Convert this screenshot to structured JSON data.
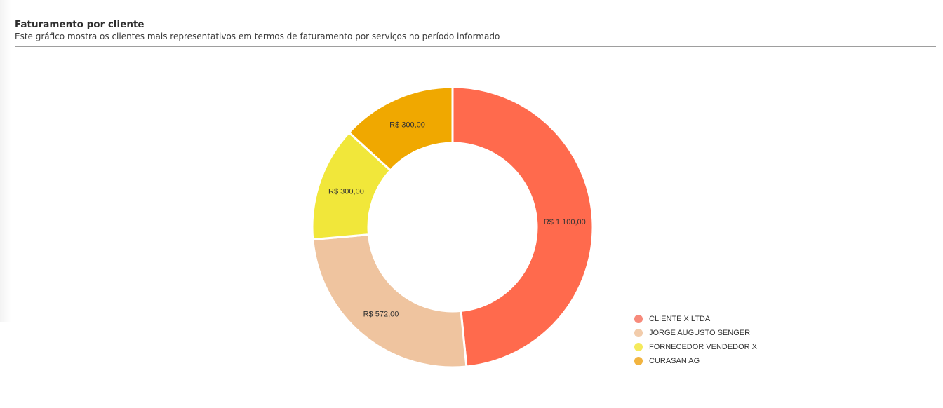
{
  "header": {
    "title": "Faturamento por cliente",
    "subtitle": "Este gráfico mostra os clientes mais representativos em termos de faturamento por serviços no período informado"
  },
  "chart_data": {
    "type": "pie",
    "variant": "donut",
    "title": "",
    "legend_position": "bottom-right",
    "slices": [
      {
        "name": "CLIENTE X LTDA",
        "value": 1100.0,
        "label": "R$ 1.100,00",
        "color": "#ff6a4d",
        "legend_color": "#f78a7b"
      },
      {
        "name": "JORGE AUGUSTO SENGER",
        "value": 572.0,
        "label": "R$ 572,00",
        "color": "#efc49f",
        "legend_color": "#f2ccab"
      },
      {
        "name": "FORNECEDOR VENDEDOR X",
        "value": 300.0,
        "label": "R$ 300,00",
        "color": "#f1e73a",
        "legend_color": "#f5ea5c"
      },
      {
        "name": "CURASAN AG",
        "value": 300.0,
        "label": "R$ 300,00",
        "color": "#f0a800",
        "legend_color": "#f2b440"
      }
    ]
  }
}
